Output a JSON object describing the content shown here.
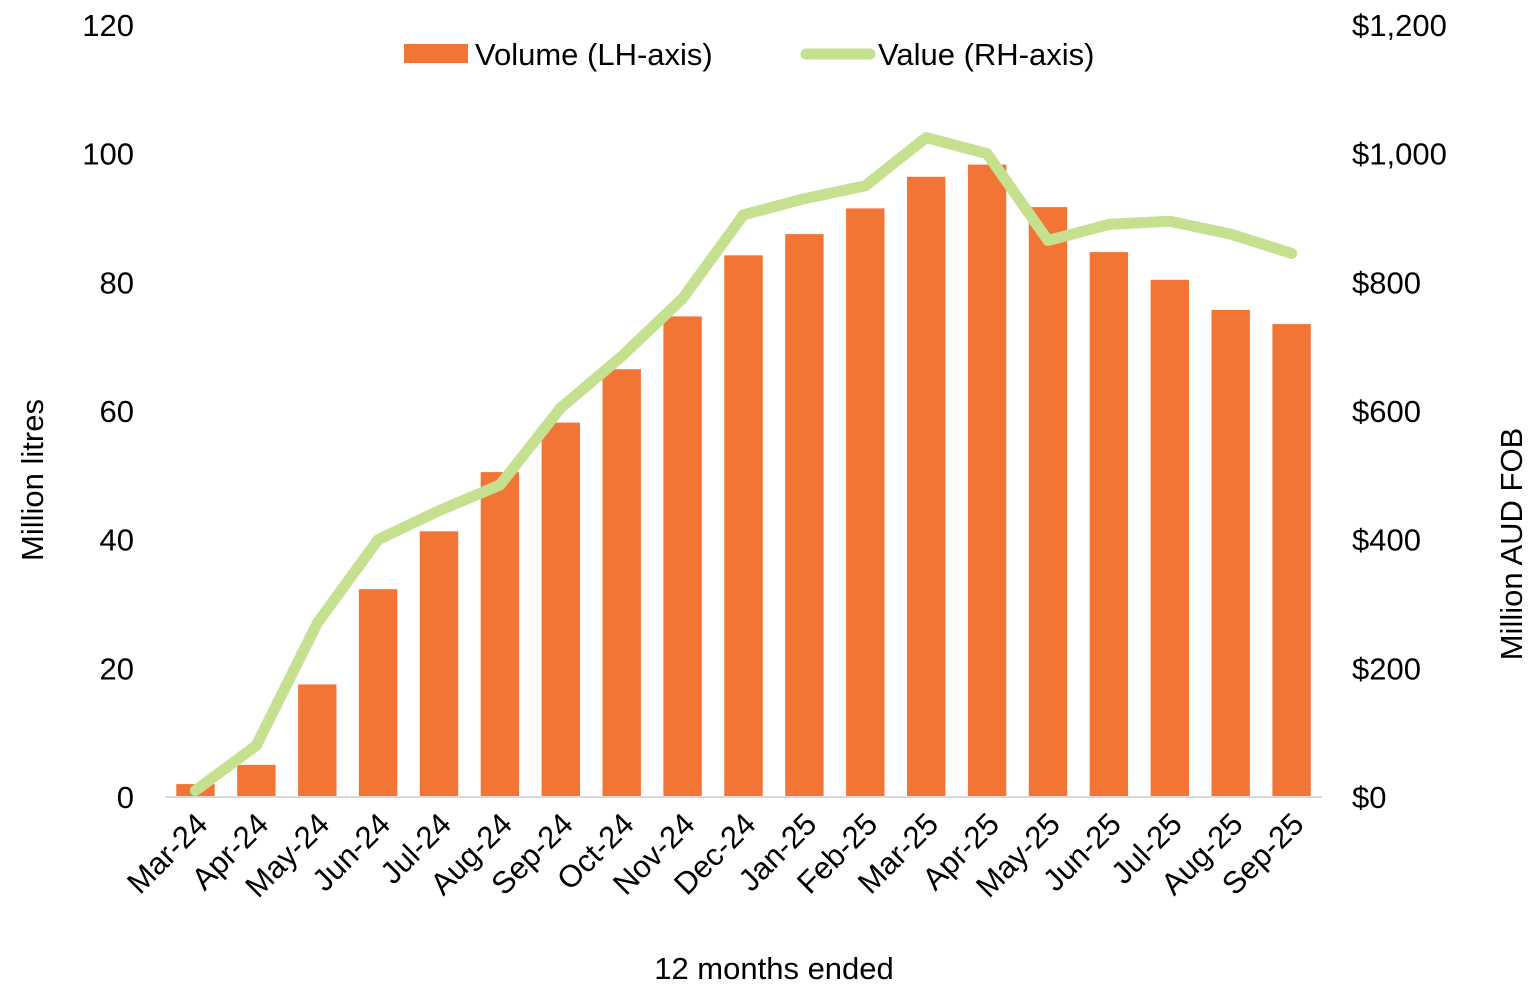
{
  "chart_data": {
    "type": "bar",
    "title": "",
    "xlabel": "12 months ended",
    "ylabel": "Million litres",
    "y2label": "Million AUD FOB",
    "categories": [
      "Mar-24",
      "Apr-24",
      "May-24",
      "Jun-24",
      "Jul-24",
      "Aug-24",
      "Sep-24",
      "Oct-24",
      "Nov-24",
      "Dec-24",
      "Jan-25",
      "Feb-25",
      "Mar-25",
      "Apr-25",
      "May-25",
      "Jun-25",
      "Jul-25",
      "Aug-25",
      "Sep-25"
    ],
    "series": [
      {
        "name": "Volume (LH-axis)",
        "type": "bar",
        "axis": "left",
        "color": "#F37535",
        "values": [
          2,
          5,
          17.5,
          32.3,
          41.3,
          50.5,
          58.2,
          66.5,
          74.7,
          84.2,
          87.5,
          91.5,
          96.4,
          98.3,
          91.7,
          84.7,
          80.4,
          75.7,
          73.5
        ]
      },
      {
        "name": "Value (RH-axis)",
        "type": "line",
        "axis": "right",
        "color": "#C5E08E",
        "values": [
          10,
          80,
          270,
          400,
          445,
          485,
          605,
          685,
          775,
          905,
          930,
          950,
          1025,
          1000,
          865,
          890,
          895,
          875,
          845
        ]
      }
    ],
    "ylim": [
      0,
      120
    ],
    "y2lim": [
      0,
      1200
    ],
    "yticks": [
      "0",
      "20",
      "40",
      "60",
      "80",
      "100",
      "120"
    ],
    "y2ticks": [
      "$0",
      "$200",
      "$400",
      "$600",
      "$800",
      "$1,000",
      "$1,200"
    ],
    "grid": false,
    "legend": "top-center"
  }
}
